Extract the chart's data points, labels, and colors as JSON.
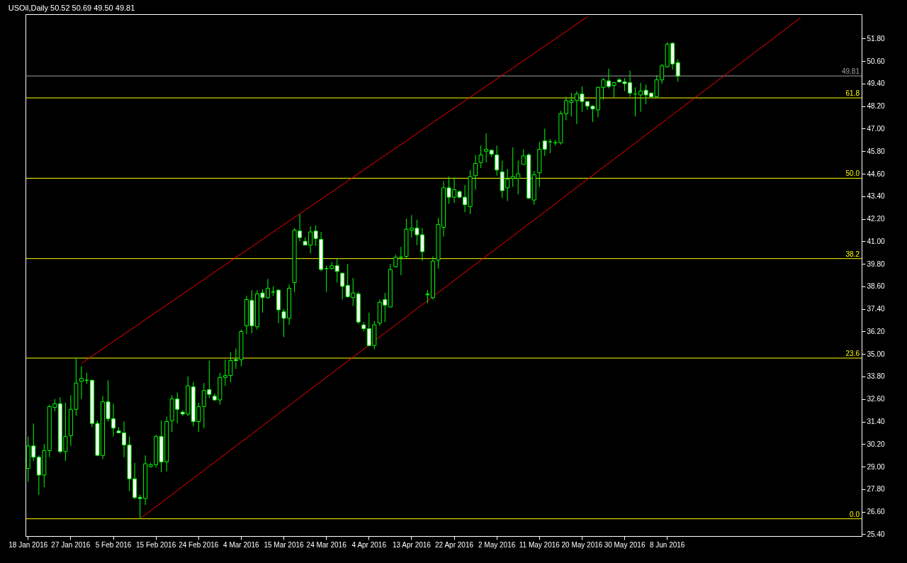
{
  "chart_data": {
    "type": "candlestick",
    "title": "USOil,Daily 50.52 50.69 49.50 49.81",
    "color": "#00ff00",
    "categories": [
      "18 Jan 2016",
      null,
      null,
      null,
      null,
      null,
      null,
      null,
      "27 Jan 2016",
      null,
      null,
      null,
      null,
      null,
      null,
      null,
      "5 Feb 2016",
      null,
      null,
      null,
      null,
      null,
      null,
      null,
      "15 Feb 2016",
      null,
      null,
      null,
      null,
      null,
      null,
      null,
      "24 Feb 2016",
      null,
      null,
      null,
      null,
      null,
      null,
      null,
      "4 Mar 2016",
      null,
      null,
      null,
      null,
      null,
      null,
      null,
      "15 Mar 2016",
      null,
      null,
      null,
      null,
      null,
      null,
      null,
      "24 Mar 2016",
      null,
      null,
      null,
      null,
      null,
      null,
      null,
      "4 Apr 2016",
      null,
      null,
      null,
      null,
      null,
      null,
      null,
      "13 Apr 2016",
      null,
      null,
      null,
      null,
      null,
      null,
      null,
      "22 Apr 2016",
      null,
      null,
      null,
      null,
      null,
      null,
      null,
      "2 May 2016",
      null,
      null,
      null,
      null,
      null,
      null,
      null,
      "11 May 2016",
      null,
      null,
      null,
      null,
      null,
      null,
      null,
      "20 May 2016",
      null,
      null,
      null,
      null,
      null,
      null,
      null,
      "30 May 2016",
      null,
      null,
      null,
      null,
      null,
      null,
      null,
      "8 Jun 2016",
      null,
      null,
      null,
      null,
      null,
      null,
      null,
      null,
      null,
      null,
      null,
      null,
      null,
      null,
      null,
      null,
      null,
      null,
      null,
      null,
      null,
      null,
      null,
      null,
      null,
      null,
      null,
      null,
      null,
      null,
      null,
      null,
      null,
      null,
      null,
      null
    ],
    "ohlc": [
      [
        28.9,
        30.6,
        28.2,
        30.1
      ],
      [
        30.1,
        31.3,
        29.3,
        29.5
      ],
      [
        29.5,
        29.6,
        27.5,
        28.55
      ],
      [
        28.55,
        30.2,
        27.9,
        29.85
      ],
      [
        29.85,
        32.3,
        29.5,
        32.2
      ],
      [
        32.15,
        32.6,
        31.95,
        32.35
      ],
      [
        32.35,
        32.7,
        29.7,
        29.8
      ],
      [
        29.8,
        32.4,
        29.3,
        30.6
      ],
      [
        30.65,
        32.8,
        30.1,
        32.05
      ],
      [
        32.05,
        34.8,
        31.7,
        33.45
      ],
      [
        33.55,
        34.35,
        32.6,
        33.7
      ],
      [
        33.6,
        34.0,
        33.4,
        33.6
      ],
      [
        33.6,
        33.6,
        31.1,
        31.3
      ],
      [
        31.3,
        31.45,
        29.55,
        29.6
      ],
      [
        29.6,
        32.75,
        29.4,
        32.45
      ],
      [
        32.45,
        33.6,
        31.4,
        31.55
      ],
      [
        31.55,
        32.35,
        30.6,
        31.05
      ],
      [
        30.9,
        31.1,
        30.8,
        30.8
      ],
      [
        30.8,
        31.4,
        29.5,
        30.15
      ],
      [
        30.15,
        30.6,
        27.7,
        28.35
      ],
      [
        28.35,
        29.2,
        27.25,
        27.35
      ],
      [
        27.35,
        27.5,
        26.2,
        27.3
      ],
      [
        27.3,
        29.6,
        26.95,
        29.15
      ],
      [
        29.0,
        29.2,
        28.95,
        29.1
      ],
      [
        29.1,
        30.7,
        28.95,
        30.6
      ],
      [
        30.6,
        31.45,
        28.7,
        29.25
      ],
      [
        29.25,
        31.65,
        28.75,
        31.4
      ],
      [
        31.45,
        32.8,
        30.85,
        32.6
      ],
      [
        32.6,
        32.95,
        31.3,
        32.05
      ],
      [
        31.9,
        32.0,
        31.7,
        31.8
      ],
      [
        31.8,
        33.8,
        31.7,
        33.3
      ],
      [
        33.25,
        33.5,
        31.15,
        31.4
      ],
      [
        31.4,
        32.4,
        30.85,
        32.2
      ],
      [
        32.2,
        33.45,
        31.05,
        33.05
      ],
      [
        33.1,
        34.65,
        32.65,
        32.85
      ],
      [
        32.75,
        32.9,
        32.5,
        32.55
      ],
      [
        32.55,
        34.0,
        32.3,
        33.75
      ],
      [
        33.75,
        34.7,
        33.3,
        33.85
      ],
      [
        33.85,
        35.1,
        33.5,
        34.65
      ],
      [
        34.7,
        35.3,
        34.2,
        34.65
      ],
      [
        34.7,
        36.3,
        34.35,
        36.2
      ],
      [
        36.5,
        38.1,
        36.05,
        37.9
      ],
      [
        37.85,
        38.4,
        36.1,
        36.5
      ],
      [
        36.45,
        38.4,
        36.3,
        38.2
      ],
      [
        38.25,
        38.45,
        37.2,
        38.0
      ],
      [
        38.0,
        39.0,
        37.95,
        38.5
      ],
      [
        38.3,
        38.6,
        38.1,
        38.3
      ],
      [
        38.4,
        38.45,
        36.65,
        37.35
      ],
      [
        37.25,
        37.4,
        35.9,
        36.9
      ],
      [
        36.9,
        38.7,
        36.55,
        38.5
      ],
      [
        38.8,
        41.7,
        38.3,
        41.6
      ],
      [
        41.55,
        42.45,
        41.0,
        41.2
      ],
      [
        41.0,
        41.2,
        40.8,
        40.8
      ],
      [
        40.8,
        41.8,
        40.35,
        41.5
      ],
      [
        41.55,
        41.85,
        40.75,
        41.15
      ],
      [
        41.1,
        41.5,
        39.4,
        39.5
      ],
      [
        39.55,
        39.7,
        38.3,
        39.55
      ],
      [
        39.55,
        39.9,
        39.5,
        39.7
      ],
      [
        39.7,
        40.1,
        38.8,
        39.4
      ],
      [
        39.3,
        39.35,
        37.9,
        38.6
      ],
      [
        38.65,
        39.8,
        38.0,
        38.05
      ],
      [
        38.0,
        39.05,
        37.55,
        38.25
      ],
      [
        38.2,
        38.3,
        36.6,
        36.7
      ],
      [
        36.55,
        36.7,
        36.2,
        36.35
      ],
      [
        36.35,
        37.2,
        35.4,
        35.45
      ],
      [
        35.45,
        36.75,
        35.25,
        36.55
      ],
      [
        36.65,
        37.9,
        36.5,
        37.75
      ],
      [
        37.9,
        38.25,
        36.7,
        37.6
      ],
      [
        37.5,
        39.8,
        37.5,
        39.5
      ],
      [
        39.65,
        40.3,
        39.6,
        40.15
      ],
      [
        40.15,
        40.7,
        39.2,
        40.15
      ],
      [
        40.2,
        42.2,
        40.1,
        41.65
      ],
      [
        41.6,
        42.4,
        41.2,
        41.7
      ],
      [
        41.7,
        42.15,
        40.8,
        41.35
      ],
      [
        41.35,
        41.7,
        39.95,
        40.45
      ],
      [
        38.15,
        38.4,
        37.7,
        38.2
      ],
      [
        38.0,
        40.2,
        37.9,
        39.95
      ],
      [
        40.0,
        42.25,
        39.55,
        41.9
      ],
      [
        41.75,
        44.2,
        41.25,
        43.85
      ],
      [
        43.85,
        44.45,
        43.0,
        43.35
      ],
      [
        43.35,
        44.4,
        43.05,
        43.75
      ],
      [
        43.65,
        43.7,
        43.3,
        43.35
      ],
      [
        43.35,
        44.0,
        42.55,
        42.95
      ],
      [
        42.85,
        44.8,
        42.45,
        44.45
      ],
      [
        44.5,
        45.6,
        43.75,
        45.15
      ],
      [
        45.2,
        46.1,
        44.9,
        45.6
      ],
      [
        45.8,
        46.75,
        45.2,
        45.9
      ],
      [
        45.85,
        45.9,
        45.5,
        45.65
      ],
      [
        45.6,
        46.1,
        44.5,
        44.8
      ],
      [
        44.7,
        45.3,
        43.3,
        43.7
      ],
      [
        43.85,
        44.85,
        43.15,
        44.3
      ],
      [
        44.35,
        46.0,
        43.9,
        44.45
      ],
      [
        44.35,
        45.3,
        43.5,
        44.6
      ],
      [
        45.1,
        45.9,
        45.1,
        45.55
      ],
      [
        45.6,
        45.7,
        43.25,
        43.3
      ],
      [
        43.2,
        44.75,
        42.95,
        44.55
      ],
      [
        44.65,
        46.3,
        43.9,
        45.9
      ],
      [
        46.35,
        47.0,
        45.55,
        45.9
      ],
      [
        46.3,
        46.45,
        45.7,
        46.3
      ],
      [
        46.25,
        46.4,
        46.1,
        46.25
      ],
      [
        46.25,
        47.95,
        46.15,
        47.8
      ],
      [
        47.8,
        48.7,
        47.45,
        48.5
      ],
      [
        48.4,
        48.9,
        47.65,
        48.5
      ],
      [
        48.5,
        49.0,
        47.25,
        48.85
      ],
      [
        48.85,
        49.25,
        47.9,
        48.45
      ],
      [
        48.45,
        48.45,
        48.0,
        48.2
      ],
      [
        48.2,
        48.25,
        47.35,
        48.05
      ],
      [
        48.0,
        49.25,
        47.6,
        49.2
      ],
      [
        49.2,
        49.7,
        48.55,
        49.6
      ],
      [
        49.55,
        50.2,
        49.15,
        49.25
      ],
      [
        49.3,
        49.5,
        48.65,
        49.45
      ],
      [
        49.6,
        49.7,
        49.45,
        49.5
      ],
      [
        49.5,
        49.7,
        49.0,
        49.4
      ],
      [
        49.45,
        50.1,
        48.7,
        48.9
      ],
      [
        48.85,
        49.2,
        47.65,
        48.85
      ],
      [
        48.8,
        49.45,
        47.9,
        49.0
      ],
      [
        49.05,
        49.35,
        48.3,
        48.8
      ],
      [
        48.9,
        48.9,
        48.65,
        48.7
      ],
      [
        48.7,
        49.85,
        48.7,
        49.6
      ],
      [
        49.6,
        50.45,
        49.4,
        50.35
      ],
      [
        50.3,
        51.6,
        50.25,
        51.5
      ],
      [
        51.55,
        51.6,
        50.15,
        50.45
      ],
      [
        50.52,
        50.69,
        49.5,
        49.81
      ],
      null,
      null,
      null,
      null,
      null,
      null,
      null,
      null,
      null,
      null,
      null,
      null,
      null,
      null,
      null,
      null,
      null,
      null,
      null,
      null,
      null,
      null,
      null,
      null,
      null,
      null,
      null,
      null,
      null,
      null,
      null,
      null,
      null,
      null
    ],
    "ylim": [
      25.3,
      53.1
    ],
    "yticks": [
      {
        "value": 25.4,
        "label": "25.40"
      },
      {
        "value": 26.6,
        "label": "26.60"
      },
      {
        "value": 27.8,
        "label": "27.80"
      },
      {
        "value": 29,
        "label": "29.00"
      },
      {
        "value": 30.2,
        "label": "30.20"
      },
      {
        "value": 31.4,
        "label": "31.40"
      },
      {
        "value": 32.6,
        "label": "32.60"
      },
      {
        "value": 33.8,
        "label": "33.80"
      },
      {
        "value": 35,
        "label": "35.00"
      },
      {
        "value": 36.2,
        "label": "36.20"
      },
      {
        "value": 37.4,
        "label": "37.40"
      },
      {
        "value": 38.6,
        "label": "38.60"
      },
      {
        "value": 39.8,
        "label": "39.80"
      },
      {
        "value": 41,
        "label": "41.00"
      },
      {
        "value": 42.2,
        "label": "42.20"
      },
      {
        "value": 43.4,
        "label": "43.40"
      },
      {
        "value": 44.6,
        "label": "44.60"
      },
      {
        "value": 45.8,
        "label": "45.80"
      },
      {
        "value": 47,
        "label": "47.00"
      },
      {
        "value": 48.2,
        "label": "48.20"
      },
      {
        "value": 49.4,
        "label": "49.40"
      },
      {
        "value": 50.6,
        "label": "50.60"
      },
      {
        "value": 51.8,
        "label": "51.80"
      }
    ],
    "ref_lines": [
      {
        "axis": "y",
        "value": 26.22,
        "color": "#ffff00"
      },
      {
        "axis": "y",
        "value": 34.78,
        "color": "#ffff00"
      },
      {
        "axis": "y",
        "value": 40.08,
        "color": "#ffff00"
      },
      {
        "axis": "y",
        "value": 44.36,
        "color": "#ffff00"
      },
      {
        "axis": "y",
        "value": 48.64,
        "color": "#ffff00"
      },
      {
        "axis": "y",
        "value": 49.81,
        "label": "49.81",
        "color": "#a0a0a0"
      }
    ],
    "annotations": [
      {
        "text": "0.0",
        "y": 26.22
      },
      {
        "text": "23.6",
        "y": 34.78
      },
      {
        "text": "38.2",
        "y": 40.08
      },
      {
        "text": "50.0",
        "y": 44.36
      },
      {
        "text": "61.8",
        "y": 48.64
      }
    ],
    "series": [
      {
        "type": "line",
        "color": "#ff0000",
        "values": [
          null,
          null,
          null,
          null,
          null,
          null,
          null,
          null,
          null,
          null,
          null,
          null,
          null,
          null,
          null,
          null,
          null,
          null,
          null,
          null,
          null,
          26.22,
          26.44,
          26.65,
          26.87,
          27.08,
          27.3,
          27.51,
          27.73,
          27.94,
          28.16,
          28.37,
          28.59,
          28.8,
          29.02,
          29.23,
          29.45,
          29.66,
          29.88,
          30.09,
          30.31,
          30.52,
          30.74,
          30.95,
          31.17,
          31.38,
          31.6,
          31.81,
          32.03,
          32.24,
          32.46,
          32.68,
          32.9,
          33.11,
          33.33,
          33.54,
          33.76,
          33.97,
          34.19,
          34.4,
          34.62,
          34.83,
          35.05,
          35.26,
          35.48,
          35.69,
          35.91,
          36.12,
          36.34,
          36.55,
          36.77,
          36.98,
          37.2,
          37.41,
          37.63,
          37.84,
          38.06,
          38.27,
          38.49,
          38.7,
          38.92,
          39.13,
          39.35,
          39.56,
          39.78,
          39.99,
          40.21,
          40.42,
          40.64,
          40.85,
          41.07,
          41.28,
          41.5,
          41.71,
          41.93,
          42.14,
          42.36,
          42.57,
          42.79,
          43.0,
          43.22,
          43.44,
          43.66,
          43.87,
          44.09,
          44.3,
          44.52,
          44.73,
          44.95,
          45.16,
          45.38,
          45.59,
          45.81,
          46.02,
          46.24,
          46.45,
          46.67,
          46.88,
          47.1,
          47.31,
          47.53,
          47.74,
          47.96,
          48.17,
          48.39,
          48.6,
          48.82,
          49.03,
          49.25,
          49.46,
          49.68,
          49.89,
          50.11,
          50.32,
          50.54,
          50.75,
          50.97,
          51.18,
          51.4,
          51.61,
          51.83,
          52.04,
          52.26,
          52.47,
          52.69,
          52.9,
          null,
          null,
          null,
          null,
          null,
          null,
          null,
          null,
          null,
          null,
          null
        ]
      },
      {
        "type": "line",
        "color": "#ff0000",
        "values": [
          null,
          null,
          null,
          null,
          null,
          null,
          null,
          null,
          null,
          null,
          34.5,
          34.69,
          34.89,
          35.08,
          35.28,
          35.47,
          35.67,
          35.86,
          36.05,
          36.25,
          36.44,
          36.63,
          36.83,
          37.02,
          37.22,
          37.41,
          37.61,
          37.8,
          37.99,
          38.19,
          38.39,
          38.58,
          38.78,
          38.97,
          39.17,
          39.36,
          39.56,
          39.75,
          39.94,
          40.14,
          40.33,
          40.52,
          40.72,
          40.91,
          41.11,
          41.3,
          41.5,
          41.69,
          41.88,
          42.08,
          42.27,
          42.46,
          42.66,
          42.85,
          43.05,
          43.24,
          43.44,
          43.63,
          43.82,
          44.02,
          44.22,
          44.41,
          44.61,
          44.8,
          45.0,
          45.19,
          45.39,
          45.58,
          45.77,
          45.97,
          46.16,
          46.35,
          46.55,
          46.74,
          46.94,
          47.13,
          47.33,
          47.52,
          47.71,
          47.91,
          48.1,
          48.29,
          48.49,
          48.68,
          48.88,
          49.07,
          49.27,
          49.46,
          49.65,
          49.85,
          50.04,
          50.23,
          50.43,
          50.62,
          50.82,
          51.01,
          51.21,
          51.4,
          51.59,
          51.79,
          51.99,
          52.18,
          52.38,
          52.57,
          52.77,
          52.96,
          null,
          null,
          null,
          null,
          null,
          null,
          null,
          null,
          null,
          null,
          null,
          null,
          null,
          null,
          null,
          null,
          null,
          null,
          null,
          null,
          null,
          null,
          null,
          null,
          null,
          null,
          null,
          null,
          null,
          null,
          null,
          null,
          null,
          null,
          null,
          null,
          null,
          null,
          null,
          null,
          null,
          null,
          null,
          null,
          null,
          null,
          null,
          null,
          null,
          null,
          null
        ]
      }
    ]
  }
}
